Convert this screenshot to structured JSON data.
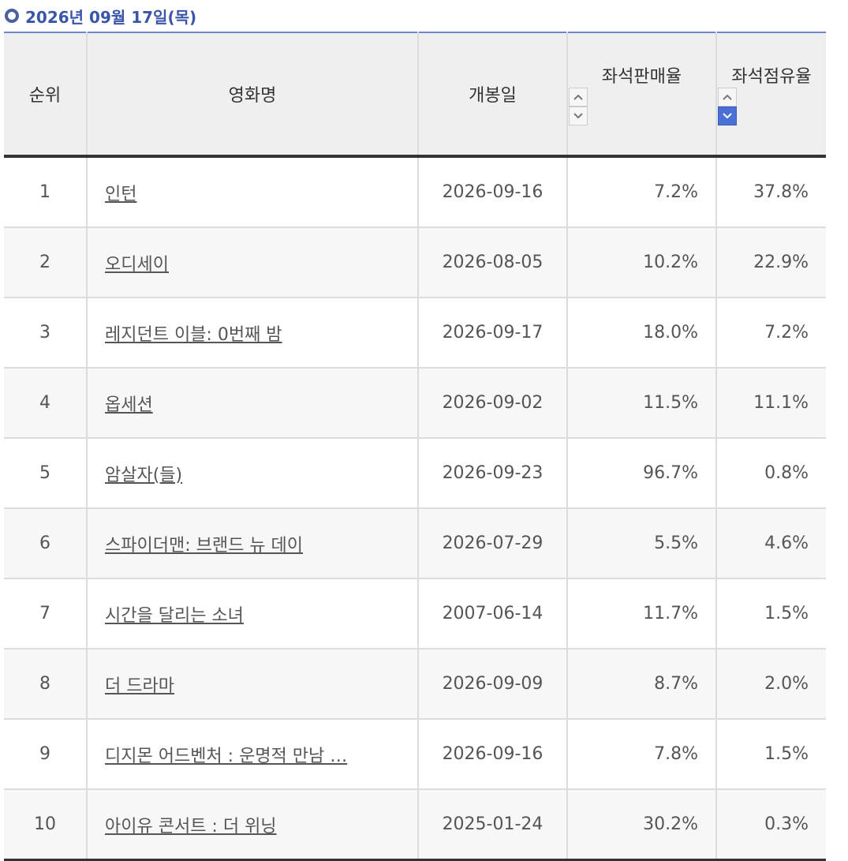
{
  "header": {
    "date": "2026년 09월 17일(목)"
  },
  "table": {
    "columns": [
      "순위",
      "영화명",
      "개봉일",
      "좌석판매율",
      "좌석점유율"
    ],
    "rows": [
      [
        "1",
        "인턴",
        "2026-09-16",
        "7.2%",
        "37.8%"
      ],
      [
        "2",
        "오디세이",
        "2026-08-05",
        "10.2%",
        "22.9%"
      ],
      [
        "3",
        "레지던트 이블: 0번째 밤",
        "2026-09-17",
        "18.0%",
        "7.2%"
      ],
      [
        "4",
        "옵세션",
        "2026-09-02",
        "11.5%",
        "11.1%"
      ],
      [
        "5",
        "암살자(들)",
        "2026-09-23",
        "96.7%",
        "0.8%"
      ],
      [
        "6",
        "스파이더맨: 브랜드 뉴 데이",
        "2026-07-29",
        "5.5%",
        "4.6%"
      ],
      [
        "7",
        "시간을 달리는 소녀",
        "2007-06-14",
        "11.7%",
        "1.5%"
      ],
      [
        "8",
        "더 드라마",
        "2026-09-09",
        "8.7%",
        "2.0%"
      ],
      [
        "9",
        "디지몬 어드벤처 : 운명적 만남 …",
        "2026-09-16",
        "7.8%",
        "1.5%"
      ],
      [
        "10",
        "아이유 콘서트 : 더 위닝",
        "2025-01-24",
        "30.2%",
        "0.3%"
      ]
    ]
  }
}
